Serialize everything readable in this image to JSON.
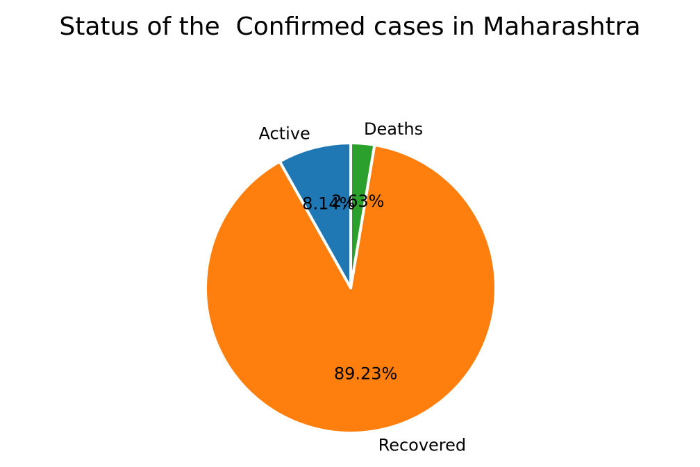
{
  "chart_data": {
    "type": "pie",
    "title": "Status of the  Confirmed cases in Maharashtra",
    "slices": [
      {
        "label": "Active",
        "value": 8.14,
        "pct_label": "8.14%",
        "color": "#1f77b4"
      },
      {
        "label": "Recovered",
        "value": 89.23,
        "pct_label": "89.23%",
        "color": "#ff7f0e"
      },
      {
        "label": "Deaths",
        "value": 2.63,
        "pct_label": "2.63%",
        "color": "#2ca02c"
      }
    ],
    "start_angle_deg": 90,
    "direction": "counterclockwise",
    "legend": "none"
  }
}
